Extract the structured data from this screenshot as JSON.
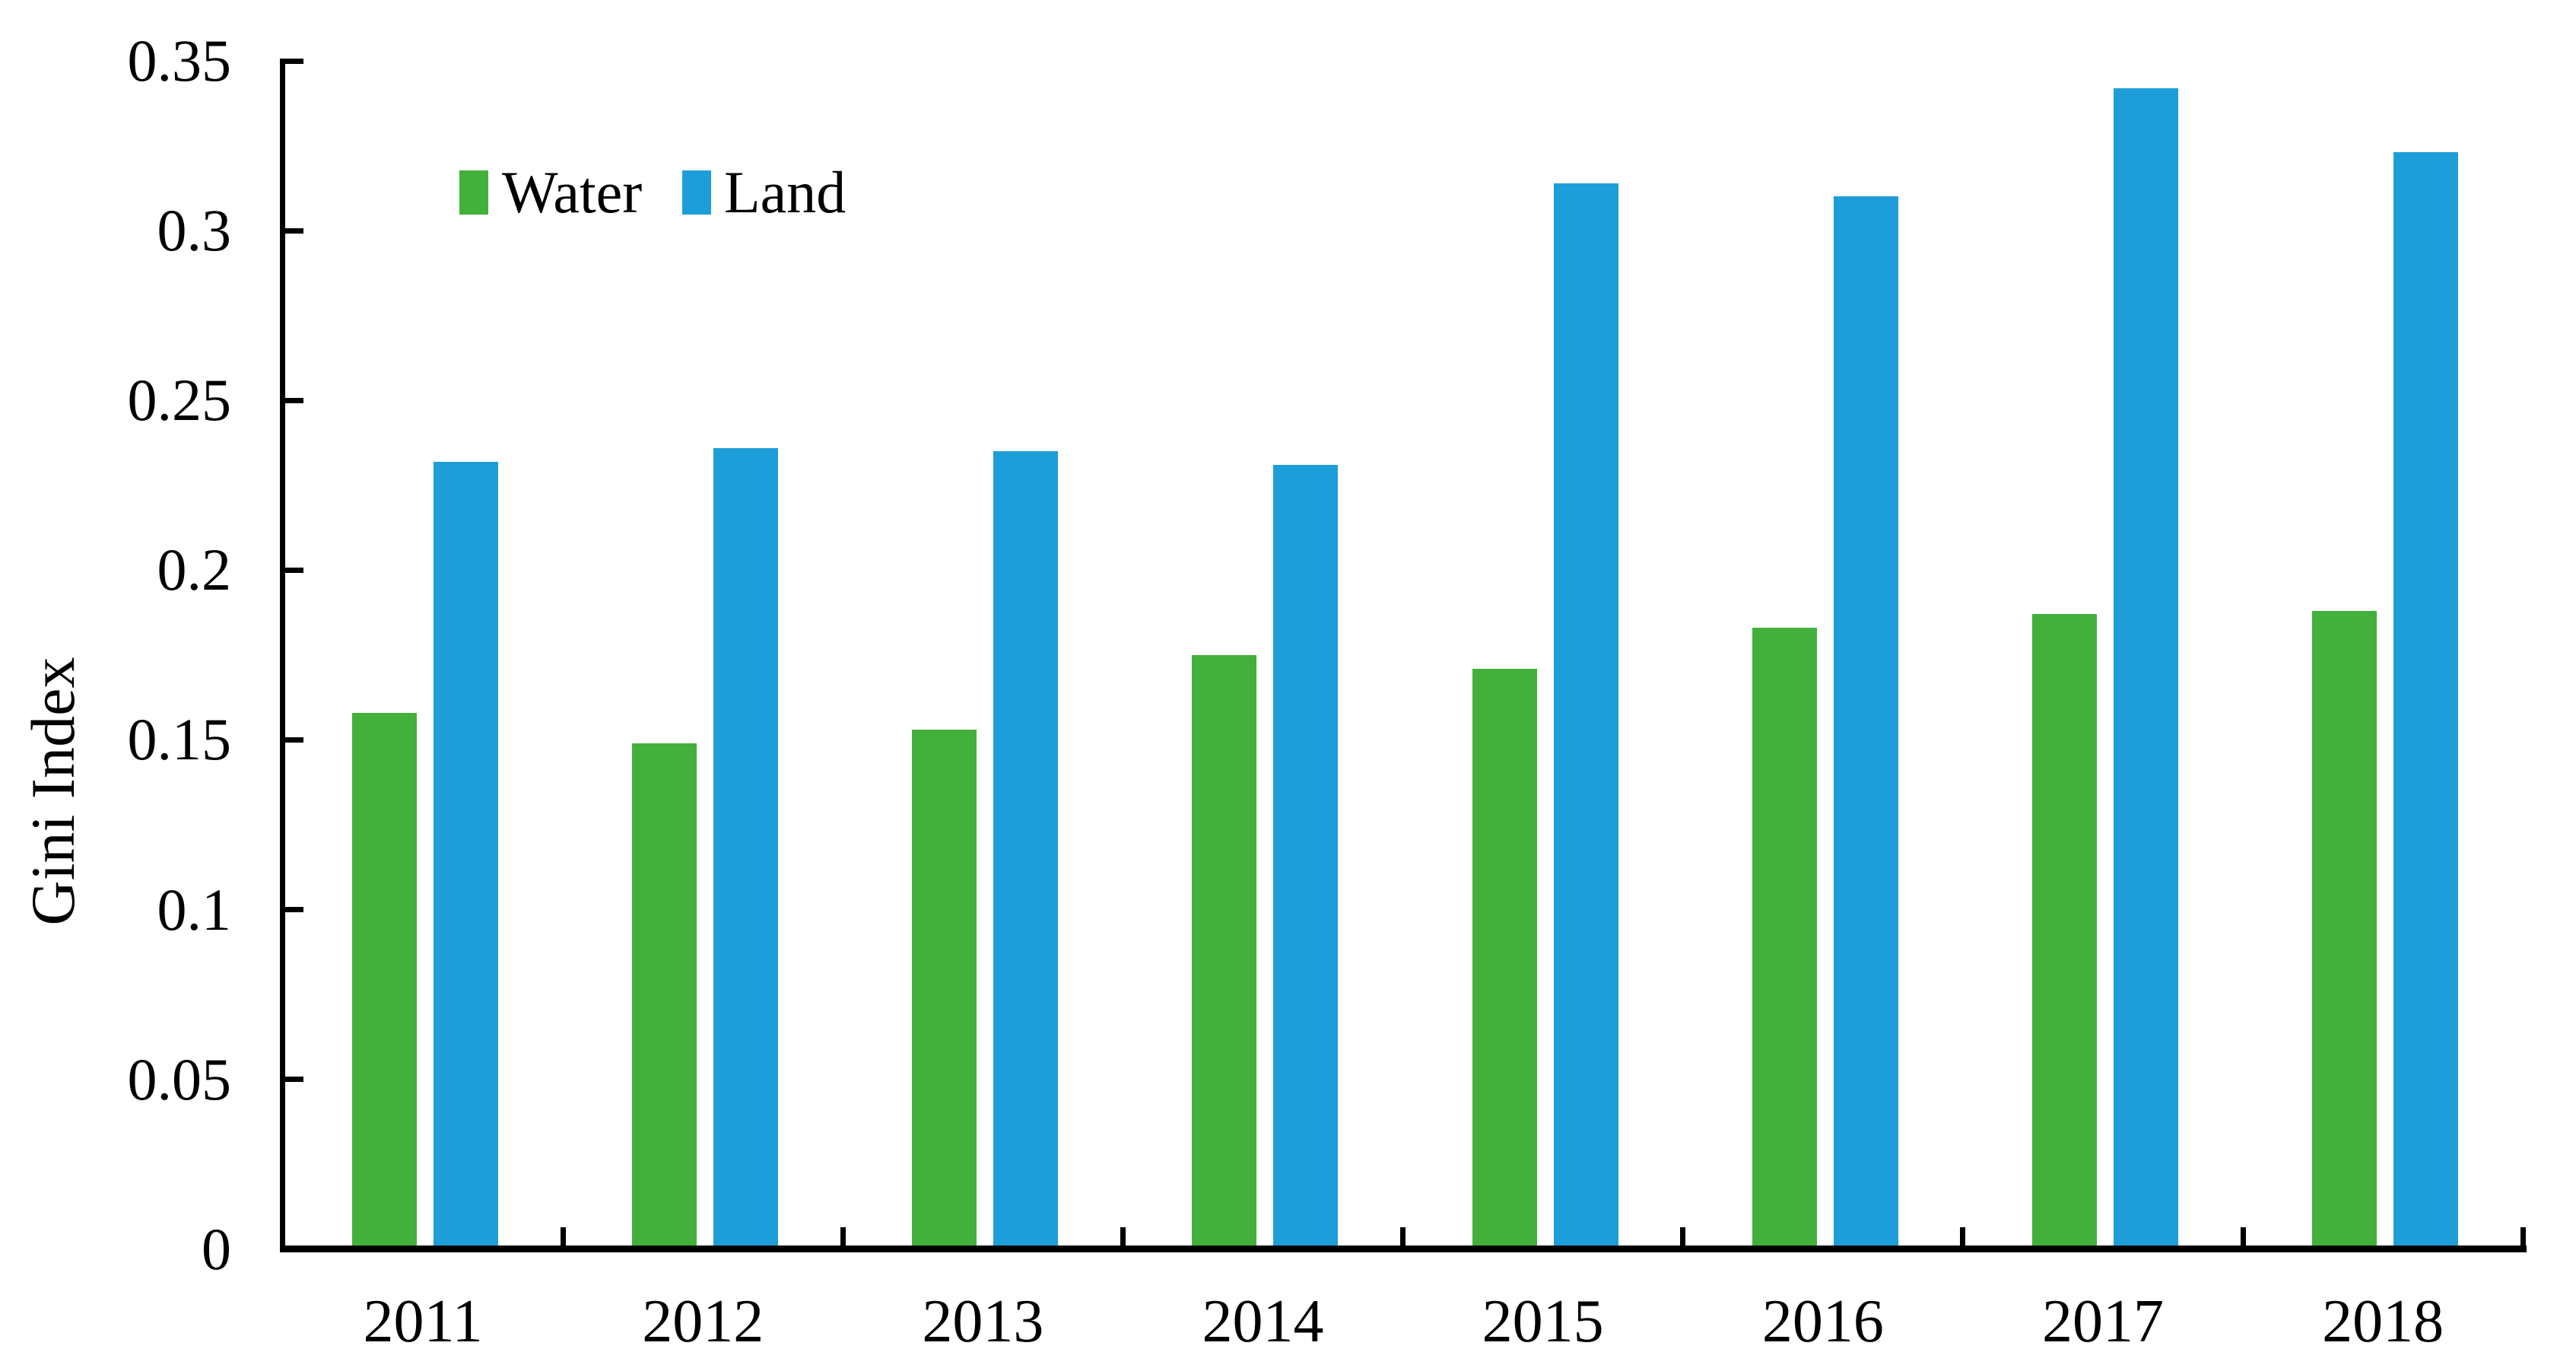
{
  "chart_data": {
    "type": "bar",
    "title": "",
    "ylabel": "Gini Index",
    "xlabel": "",
    "categories": [
      "2011",
      "2012",
      "2013",
      "2014",
      "2015",
      "2016",
      "2017",
      "2018"
    ],
    "series": [
      {
        "name": "Water",
        "color": "#42B03B",
        "values": [
          0.158,
          0.149,
          0.153,
          0.175,
          0.171,
          0.183,
          0.187,
          0.188
        ]
      },
      {
        "name": "Land",
        "color": "#1E9ED8",
        "values": [
          0.232,
          0.236,
          0.235,
          0.231,
          0.314,
          0.31,
          0.342,
          0.323
        ]
      }
    ],
    "ylim": [
      0,
      0.35
    ],
    "yticks": [
      {
        "value": 0,
        "label": "0"
      },
      {
        "value": 0.05,
        "label": "0.05"
      },
      {
        "value": 0.1,
        "label": "0.1"
      },
      {
        "value": 0.15,
        "label": "0.15"
      },
      {
        "value": 0.2,
        "label": "0.2"
      },
      {
        "value": 0.25,
        "label": "0.25"
      },
      {
        "value": 0.3,
        "label": "0.3"
      },
      {
        "value": 0.35,
        "label": "0.35"
      }
    ],
    "grid": false,
    "legend_position": "top-left-inside",
    "tick_style": "inside",
    "axis_color": "#000000",
    "background_color": "#FFFFFF"
  }
}
